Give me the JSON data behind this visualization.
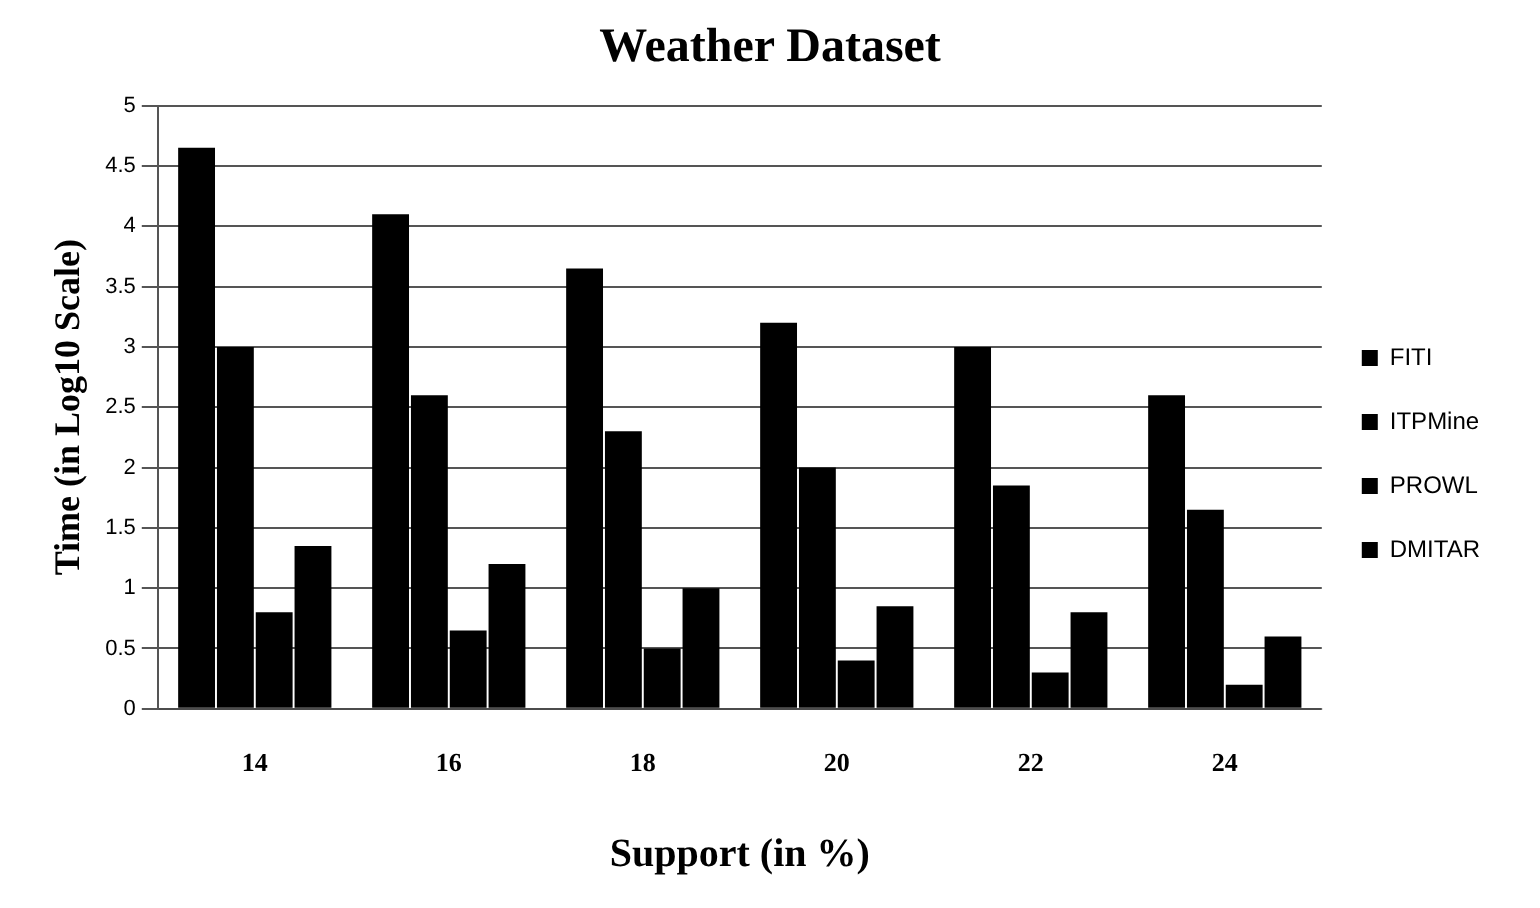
{
  "chart_data": {
    "type": "bar",
    "title": "Weather Dataset",
    "xlabel": "Support (in %)",
    "ylabel": "Time (in Log10 Scale)",
    "categories": [
      "14",
      "16",
      "18",
      "20",
      "22",
      "24"
    ],
    "series": [
      {
        "name": "FITI",
        "color": "#000000",
        "values": [
          4.65,
          4.1,
          3.65,
          3.2,
          3.0,
          2.6
        ]
      },
      {
        "name": "ITPMine",
        "color": "#000000",
        "values": [
          3.0,
          2.6,
          2.3,
          2.0,
          1.85,
          1.65
        ]
      },
      {
        "name": "PROWL",
        "color": "#000000",
        "values": [
          0.8,
          0.65,
          0.5,
          0.4,
          0.3,
          0.2
        ]
      },
      {
        "name": "DMITAR",
        "color": "#000000",
        "values": [
          1.35,
          1.2,
          1.0,
          0.85,
          0.8,
          0.6
        ]
      }
    ],
    "ylim": [
      0,
      5
    ],
    "yticks": [
      0,
      0.5,
      1,
      1.5,
      2,
      2.5,
      3,
      3.5,
      4,
      4.5,
      5
    ],
    "grid": "y",
    "legend": "right"
  }
}
